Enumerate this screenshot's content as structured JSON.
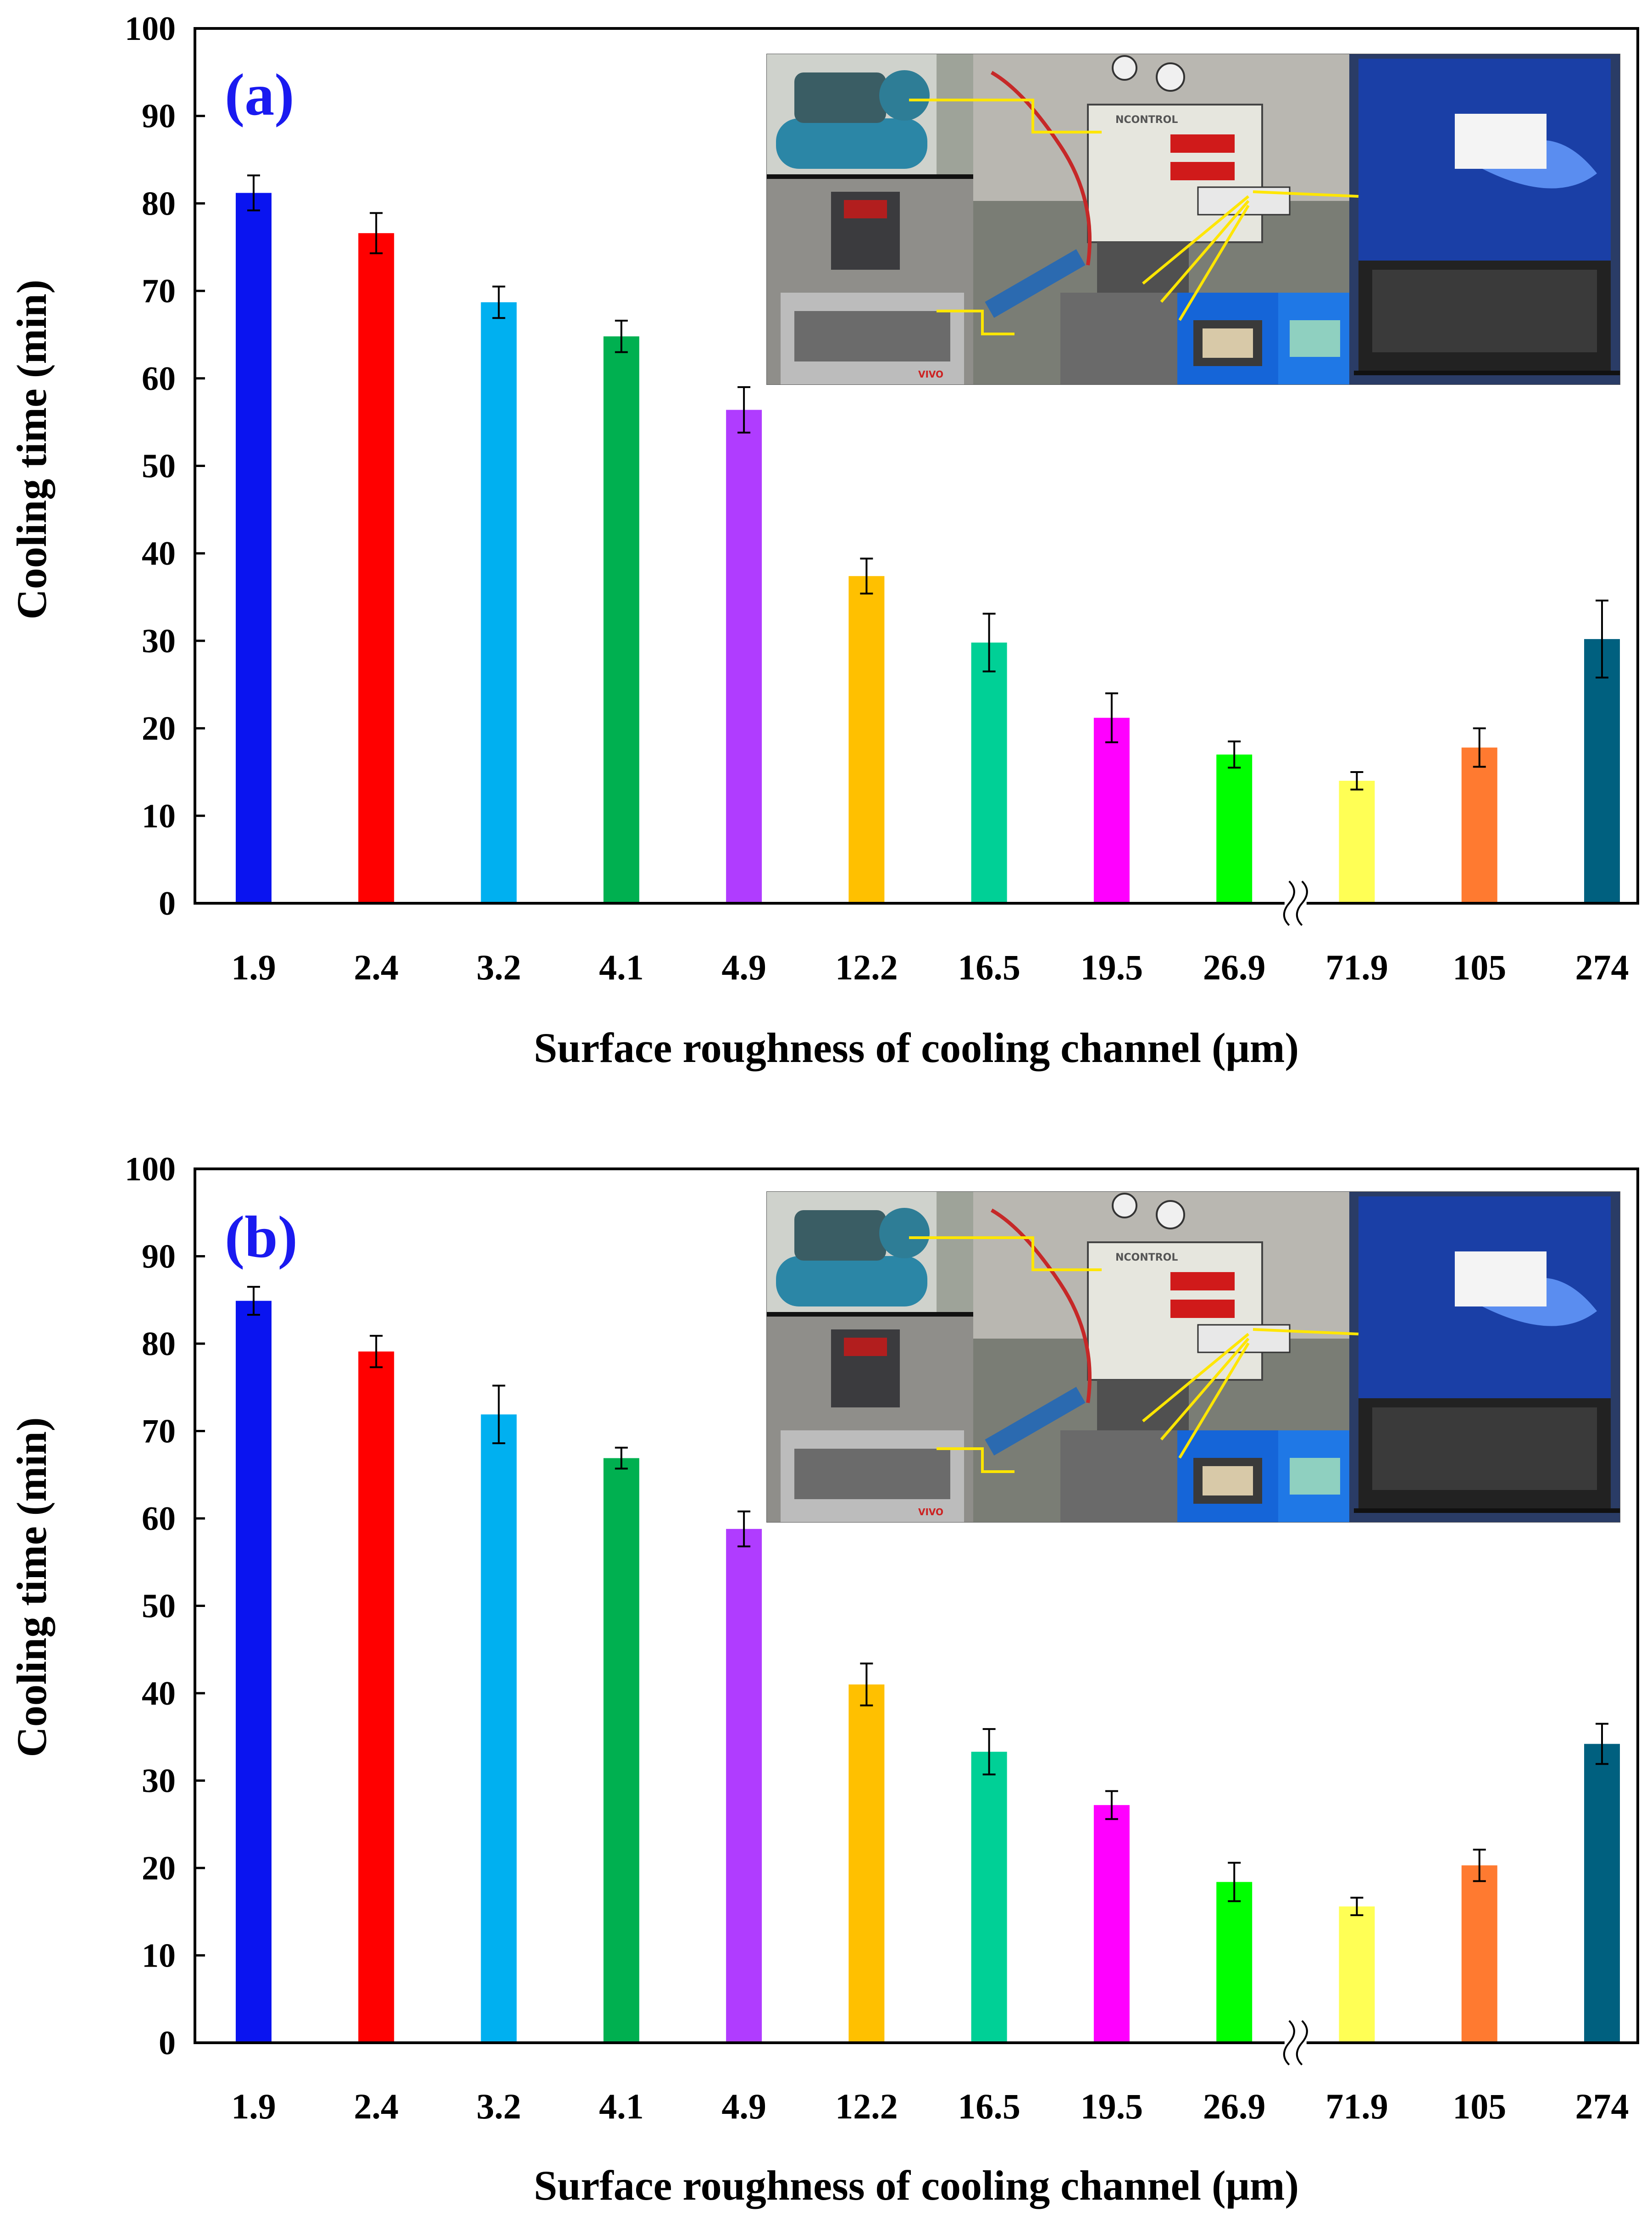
{
  "chart_data": [
    {
      "type": "bar",
      "panel_label": "(a)",
      "xlabel": "Surface roughness of cooling channel (μm)",
      "ylabel": "Cooling time (min)",
      "ylim": [
        0,
        100
      ],
      "yticks": [
        "0",
        "10",
        "20",
        "30",
        "40",
        "50",
        "60",
        "70",
        "80",
        "90",
        "100"
      ],
      "categories": [
        "1.9",
        "2.4",
        "3.2",
        "4.1",
        "4.9",
        "12.2",
        "16.5",
        "19.5",
        "26.9",
        "71.9",
        "105",
        "274"
      ],
      "values": [
        81.2,
        76.6,
        68.7,
        64.8,
        56.4,
        37.4,
        29.8,
        21.2,
        17.0,
        14.0,
        17.8,
        30.2
      ],
      "errors": [
        2.0,
        2.3,
        1.8,
        1.8,
        2.6,
        2.0,
        3.3,
        2.8,
        1.5,
        1.0,
        2.2,
        4.4
      ],
      "colors": [
        "#0a14f0",
        "#ff0000",
        "#00b0f0",
        "#00b050",
        "#b03cff",
        "#ffc000",
        "#00d096",
        "#ff00ff",
        "#00ff00",
        "#ffff55",
        "#ff7a30",
        "#00607f"
      ],
      "axis_break_between": [
        "26.9",
        "71.9"
      ]
    },
    {
      "type": "bar",
      "panel_label": "(b)",
      "xlabel": "Surface roughness of cooling channel (μm)",
      "ylabel": "Cooling time (min)",
      "ylim": [
        0,
        100
      ],
      "yticks": [
        "0",
        "10",
        "20",
        "30",
        "40",
        "50",
        "60",
        "70",
        "80",
        "90",
        "100"
      ],
      "categories": [
        "1.9",
        "2.4",
        "3.2",
        "4.1",
        "4.9",
        "12.2",
        "16.5",
        "19.5",
        "26.9",
        "71.9",
        "105",
        "274"
      ],
      "values": [
        84.9,
        79.1,
        71.9,
        66.9,
        58.8,
        41.0,
        33.3,
        27.2,
        18.4,
        15.6,
        20.3,
        34.2
      ],
      "errors": [
        1.6,
        1.8,
        3.3,
        1.2,
        2.0,
        2.4,
        2.6,
        1.6,
        2.2,
        1.0,
        1.8,
        2.3
      ],
      "colors": [
        "#0a14f0",
        "#ff0000",
        "#00b0f0",
        "#00b050",
        "#b03cff",
        "#ffc000",
        "#00d096",
        "#ff00ff",
        "#00ff00",
        "#ffff55",
        "#ff7a30",
        "#00607f"
      ],
      "axis_break_between": [
        "26.9",
        "71.9"
      ]
    }
  ],
  "inset": {
    "mold_temp_controller_label": "NCONTROL",
    "heater_brand": "VIVO"
  }
}
